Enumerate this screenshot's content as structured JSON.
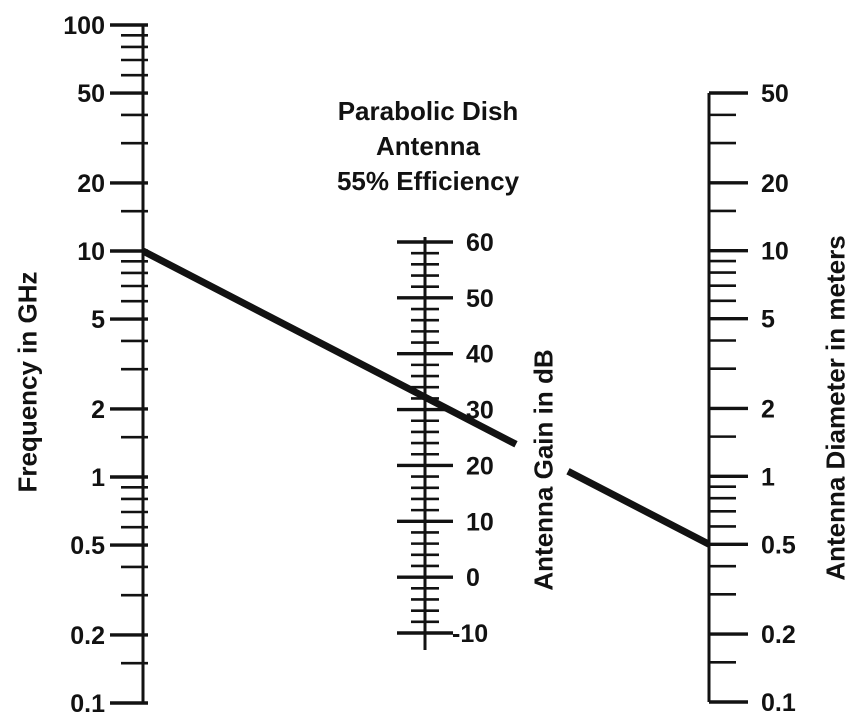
{
  "chart_data": {
    "type": "nomogram",
    "title": "Parabolic Dish Antenna 55% Efficiency",
    "title_lines": [
      "Parabolic Dish",
      "Antenna",
      "55% Efficiency"
    ],
    "scales": [
      {
        "id": "frequency",
        "axis_label": "Frequency in GHz",
        "scale_type": "log",
        "range": [
          0.1,
          100
        ],
        "labeled_ticks": [
          {
            "value": 100,
            "label": "100"
          },
          {
            "value": 50,
            "label": "50"
          },
          {
            "value": 20,
            "label": "20"
          },
          {
            "value": 10,
            "label": "10"
          },
          {
            "value": 5,
            "label": "5"
          },
          {
            "value": 2,
            "label": "2"
          },
          {
            "value": 1,
            "label": "1"
          },
          {
            "value": 0.5,
            "label": "0.5"
          },
          {
            "value": 0.2,
            "label": "0.2"
          },
          {
            "value": 0.1,
            "label": "0.1"
          }
        ],
        "minor_tick_pattern_per_decade": [
          1.5,
          3,
          4,
          6,
          7,
          8,
          9
        ]
      },
      {
        "id": "gain",
        "axis_label": "Antenna Gain in dB",
        "scale_type": "linear",
        "range": [
          -10,
          60
        ],
        "labeled_ticks": [
          {
            "value": 60,
            "label": "60"
          },
          {
            "value": 50,
            "label": "50"
          },
          {
            "value": 40,
            "label": "40"
          },
          {
            "value": 30,
            "label": "30"
          },
          {
            "value": 20,
            "label": "20"
          },
          {
            "value": 10,
            "label": "10"
          },
          {
            "value": 0,
            "label": "0"
          },
          {
            "value": -10,
            "label": "-10"
          }
        ],
        "minor_tick_step": 2
      },
      {
        "id": "diameter",
        "axis_label": "Antenna Diameter in meters",
        "scale_type": "log",
        "range": [
          0.1,
          50
        ],
        "labeled_ticks": [
          {
            "value": 50,
            "label": "50"
          },
          {
            "value": 20,
            "label": "20"
          },
          {
            "value": 10,
            "label": "10"
          },
          {
            "value": 5,
            "label": "5"
          },
          {
            "value": 2,
            "label": "2"
          },
          {
            "value": 1,
            "label": "1"
          },
          {
            "value": 0.5,
            "label": "0.5"
          },
          {
            "value": 0.2,
            "label": "0.2"
          },
          {
            "value": 0.1,
            "label": "0.1"
          }
        ],
        "minor_tick_pattern_per_decade": [
          1.5,
          3,
          4,
          6,
          7,
          8,
          9
        ]
      }
    ],
    "example_line": {
      "frequency_ghz": 10,
      "gain_db": 32,
      "diameter_m": 0.5
    }
  },
  "colors": {
    "ink": "#121212",
    "background": "#ffffff"
  }
}
